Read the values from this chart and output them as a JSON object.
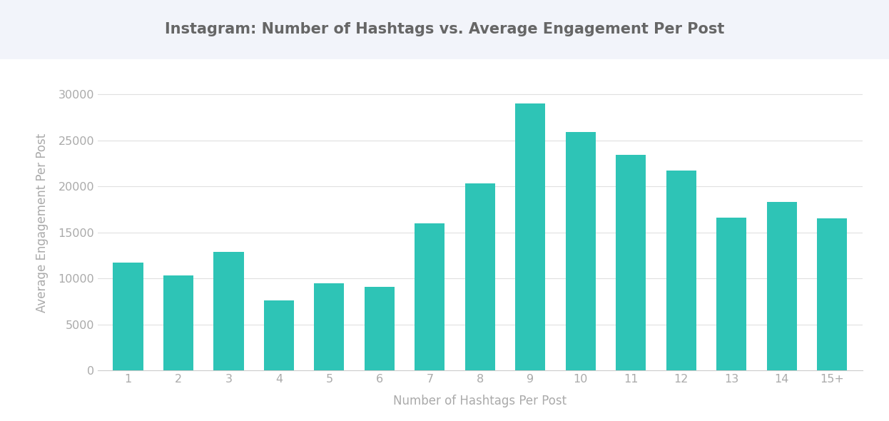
{
  "title": "Instagram: Number of Hashtags vs. Average Engagement Per Post",
  "xlabel": "Number of Hashtags Per Post",
  "ylabel": "Average Engagement Per Post",
  "categories": [
    "1",
    "2",
    "3",
    "4",
    "5",
    "6",
    "7",
    "8",
    "9",
    "10",
    "11",
    "12",
    "13",
    "14",
    "15+"
  ],
  "values": [
    11700,
    10300,
    12900,
    7600,
    9500,
    9100,
    16000,
    20300,
    29000,
    25900,
    23400,
    21700,
    16600,
    18300,
    16500
  ],
  "bar_color": "#2ec4b6",
  "background_color": "#ffffff",
  "title_area_color": "#f2f4fa",
  "plot_area_color": "#ffffff",
  "text_color": "#aaaaaa",
  "title_color": "#666666",
  "ylim": [
    0,
    32000
  ],
  "yticks": [
    0,
    5000,
    10000,
    15000,
    20000,
    25000,
    30000
  ],
  "title_fontsize": 15,
  "axis_label_fontsize": 12,
  "tick_fontsize": 11.5
}
